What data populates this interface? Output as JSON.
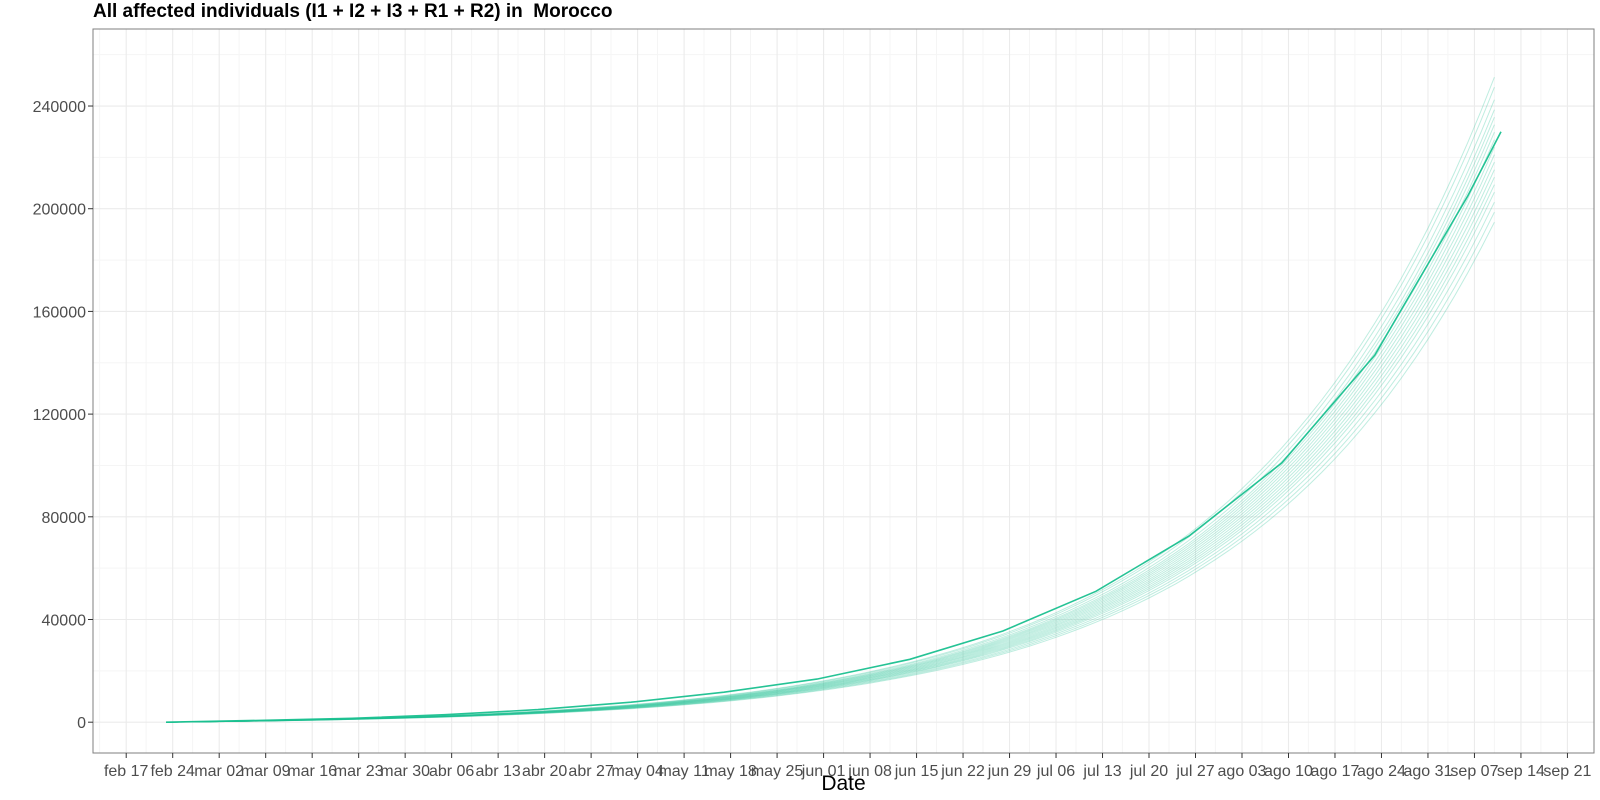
{
  "chart_data": {
    "type": "line",
    "title": "All affected individuals (I1 + I2 + I3 + R1 + R2) in  Morocco",
    "xlabel": "Date",
    "ylabel": "",
    "x_tick_labels": [
      "feb 17",
      "feb 24",
      "mar 02",
      "mar 09",
      "mar 16",
      "mar 23",
      "mar 30",
      "abr 06",
      "abr 13",
      "abr 20",
      "abr 27",
      "may 04",
      "may 11",
      "may 18",
      "may 25",
      "jun 01",
      "jun 08",
      "jun 15",
      "jun 22",
      "jun 29",
      "jul 06",
      "jul 13",
      "jul 20",
      "jul 27",
      "ago 03",
      "ago 10",
      "ago 17",
      "ago 24",
      "ago 31",
      "sep 07",
      "sep 14",
      "sep 21"
    ],
    "y_tick_labels": [
      "0",
      "40000",
      "80000",
      "120000",
      "160000",
      "200000",
      "240000"
    ],
    "y_ticks": [
      0,
      40000,
      80000,
      120000,
      160000,
      200000,
      240000
    ],
    "xlim": [
      "2020-02-12",
      "2020-09-25"
    ],
    "ylim": [
      -12000,
      270000
    ],
    "x_start": "2020-02-23",
    "x_end": "2020-09-11",
    "central_series": {
      "x": [
        "2020-02-23",
        "2020-03-08",
        "2020-03-22",
        "2020-04-05",
        "2020-04-19",
        "2020-05-03",
        "2020-05-17",
        "2020-05-31",
        "2020-06-14",
        "2020-06-28",
        "2020-07-12",
        "2020-07-26",
        "2020-08-09",
        "2020-08-23",
        "2020-09-06",
        "2020-09-11"
      ],
      "values": [
        0,
        700,
        1500,
        2900,
        4900,
        7800,
        11700,
        16800,
        24500,
        35500,
        51000,
        72500,
        101000,
        143000,
        205000,
        230000
      ]
    },
    "ensemble_final_values": [
      200000,
      204000,
      208000,
      212000,
      215000,
      218000,
      221000,
      224000,
      227000,
      230000,
      233000,
      236000,
      239000,
      242000,
      245000,
      249000,
      254000,
      258000
    ],
    "colors": {
      "line": "#19c08f",
      "grid_major": "#ebebeb",
      "grid_minor": "#f5f5f5",
      "panel_border": "#7f7f7f",
      "tick_text": "#4d4d4d"
    },
    "grid": true,
    "legend": "none"
  }
}
